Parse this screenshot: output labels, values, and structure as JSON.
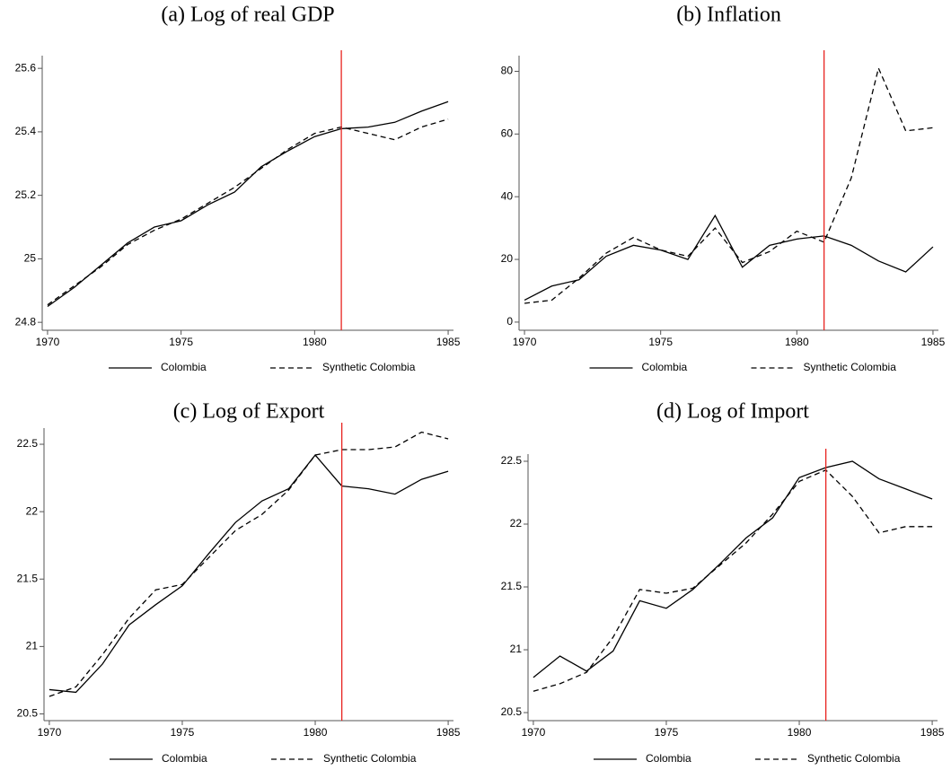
{
  "chart_data": [
    {
      "type": "line",
      "title": "(a) Log of real GDP",
      "x": [
        1970,
        1971,
        1972,
        1973,
        1974,
        1975,
        1976,
        1977,
        1978,
        1979,
        1980,
        1981,
        1982,
        1983,
        1984,
        1985
      ],
      "series": [
        {
          "name": "Colombia",
          "color": "#000000",
          "dash": false,
          "values": [
            24.85,
            24.91,
            24.98,
            25.05,
            25.1,
            25.12,
            25.17,
            25.21,
            25.29,
            25.34,
            25.385,
            25.41,
            25.415,
            25.43,
            25.465,
            25.495
          ]
        },
        {
          "name": "Synthetic Colombia",
          "color": "#000000",
          "dash": true,
          "values": [
            24.855,
            24.915,
            24.975,
            25.045,
            25.09,
            25.125,
            25.175,
            25.225,
            25.285,
            25.345,
            25.395,
            25.415,
            25.395,
            25.375,
            25.415,
            25.44
          ]
        }
      ],
      "vline": 1981,
      "vline_color": "#e8231f",
      "xlim": [
        1969.8,
        1985.2
      ],
      "xticks": [
        1970,
        1975,
        1980,
        1985
      ],
      "ylim": [
        24.775,
        25.64
      ],
      "yticks": [
        24.8,
        25,
        25.2,
        25.4,
        25.6
      ],
      "grid": false,
      "legend": "bottom"
    },
    {
      "type": "line",
      "title": "(b) Inflation",
      "x": [
        1970,
        1971,
        1972,
        1973,
        1974,
        1975,
        1976,
        1977,
        1978,
        1979,
        1980,
        1981,
        1982,
        1983,
        1984,
        1985
      ],
      "series": [
        {
          "name": "Colombia",
          "color": "#000000",
          "dash": false,
          "values": [
            7,
            11.5,
            13.5,
            21,
            24.5,
            23,
            20,
            34,
            17.5,
            24.5,
            26.5,
            27.5,
            24.5,
            19.5,
            16,
            24
          ]
        },
        {
          "name": "Synthetic Colombia",
          "color": "#000000",
          "dash": true,
          "values": [
            6,
            7,
            14,
            22,
            27,
            23,
            21,
            30,
            19,
            22.5,
            29,
            25.5,
            46,
            81,
            61,
            62
          ]
        }
      ],
      "vline": 1981,
      "vline_color": "#e8231f",
      "xlim": [
        1969.8,
        1985.2
      ],
      "xticks": [
        1970,
        1975,
        1980,
        1985
      ],
      "ylim": [
        -2.6,
        85
      ],
      "yticks": [
        0,
        20,
        40,
        60,
        80
      ],
      "grid": false,
      "legend": "bottom"
    },
    {
      "type": "line",
      "title": "(c) Log of Export",
      "x": [
        1970,
        1971,
        1972,
        1973,
        1974,
        1975,
        1976,
        1977,
        1978,
        1979,
        1980,
        1981,
        1982,
        1983,
        1984,
        1985
      ],
      "series": [
        {
          "name": "Colombia",
          "color": "#000000",
          "dash": false,
          "values": [
            20.68,
            20.66,
            20.87,
            21.16,
            21.31,
            21.45,
            21.69,
            21.92,
            22.08,
            22.17,
            22.42,
            22.19,
            22.17,
            22.13,
            22.24,
            22.3
          ]
        },
        {
          "name": "Synthetic Colombia",
          "color": "#000000",
          "dash": true,
          "values": [
            20.63,
            20.7,
            20.94,
            21.21,
            21.42,
            21.46,
            21.66,
            21.86,
            21.98,
            22.16,
            22.42,
            22.46,
            22.46,
            22.48,
            22.59,
            22.54
          ]
        }
      ],
      "vline": 1981,
      "vline_color": "#e8231f",
      "xlim": [
        1969.8,
        1985.2
      ],
      "xticks": [
        1970,
        1975,
        1980,
        1985
      ],
      "ylim": [
        20.45,
        22.62
      ],
      "yticks": [
        20.5,
        21,
        21.5,
        22,
        22.5
      ],
      "grid": false,
      "legend": "bottom"
    },
    {
      "type": "line",
      "title": "(d) Log of Import",
      "x": [
        1970,
        1971,
        1972,
        1973,
        1974,
        1975,
        1976,
        1977,
        1978,
        1979,
        1980,
        1981,
        1982,
        1983,
        1984,
        1985
      ],
      "series": [
        {
          "name": "Colombia",
          "color": "#000000",
          "dash": false,
          "values": [
            20.78,
            20.95,
            20.83,
            20.99,
            21.39,
            21.33,
            21.48,
            21.68,
            21.89,
            22.05,
            22.37,
            22.45,
            22.5,
            22.36,
            22.28,
            22.2
          ]
        },
        {
          "name": "Synthetic Colombia",
          "color": "#000000",
          "dash": true,
          "values": [
            20.67,
            20.73,
            20.82,
            21.1,
            21.48,
            21.45,
            21.49,
            21.67,
            21.85,
            22.08,
            22.34,
            22.43,
            22.22,
            21.93,
            21.98,
            21.98
          ]
        }
      ],
      "vline": 1981,
      "vline_color": "#e8231f",
      "xlim": [
        1969.8,
        1985.2
      ],
      "xticks": [
        1970,
        1975,
        1980,
        1985
      ],
      "ylim": [
        20.436,
        22.557
      ],
      "yticks": [
        20.5,
        21,
        21.5,
        22,
        22.5
      ],
      "grid": false,
      "legend": "bottom"
    }
  ]
}
